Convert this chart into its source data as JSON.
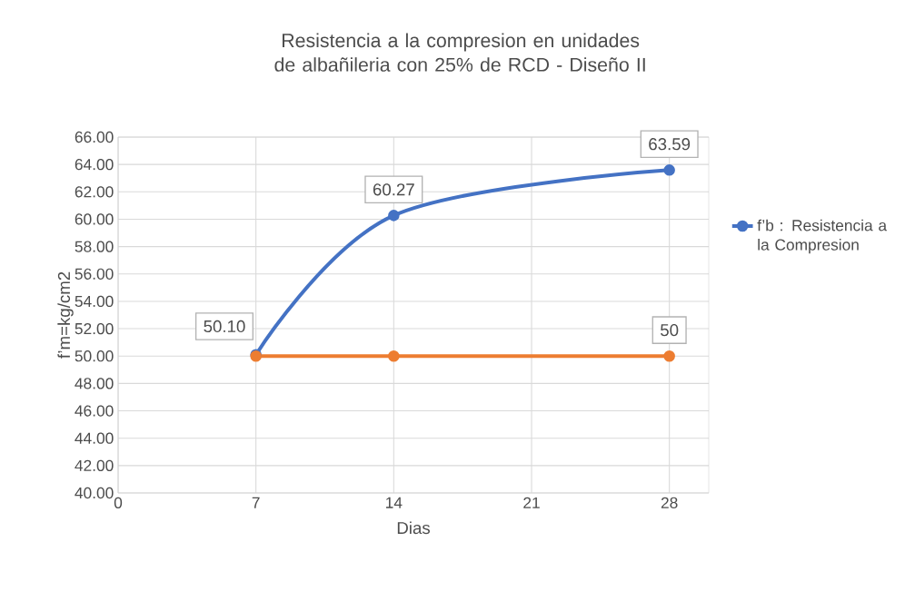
{
  "chart_data": {
    "type": "line",
    "title": "Resistencia a la compresion en unidades de albañileria con 25% de RCD - Diseño II",
    "xlabel": "Dias",
    "ylabel": "f’m=kg/cm2",
    "x": [
      7,
      14,
      28
    ],
    "series": [
      {
        "name": "f’b : Resistencia a la Compresion",
        "color": "#4472c4",
        "values": [
          50.1,
          60.27,
          63.59
        ],
        "value_labels": [
          "50.10",
          "60.27",
          "63.59"
        ]
      },
      {
        "color": "#ed7d31",
        "values": [
          50,
          50,
          50
        ],
        "value_labels": [
          null,
          null,
          "50"
        ]
      }
    ],
    "xlim": [
      0,
      30
    ],
    "xticks": [
      0,
      7,
      14,
      21,
      28
    ],
    "ylim": [
      40,
      66
    ],
    "yticks": [
      {
        "value": 40,
        "label": "40.00"
      },
      {
        "value": 42,
        "label": "42.00"
      },
      {
        "value": 44,
        "label": "44.00"
      },
      {
        "value": 46,
        "label": "46.00"
      },
      {
        "value": 48,
        "label": "48.00"
      },
      {
        "value": 50,
        "label": "50.00"
      },
      {
        "value": 52,
        "label": "52.00"
      },
      {
        "value": 54,
        "label": "54.00"
      },
      {
        "value": 56,
        "label": "56.00"
      },
      {
        "value": 58,
        "label": "58.00"
      },
      {
        "value": 60,
        "label": "60.00"
      },
      {
        "value": 62,
        "label": "62.00"
      },
      {
        "value": 64,
        "label": "64.00"
      },
      {
        "value": 66,
        "label": "66.00"
      }
    ],
    "grid": true,
    "legend": "right",
    "marker": "circle",
    "line_style": "solid"
  }
}
